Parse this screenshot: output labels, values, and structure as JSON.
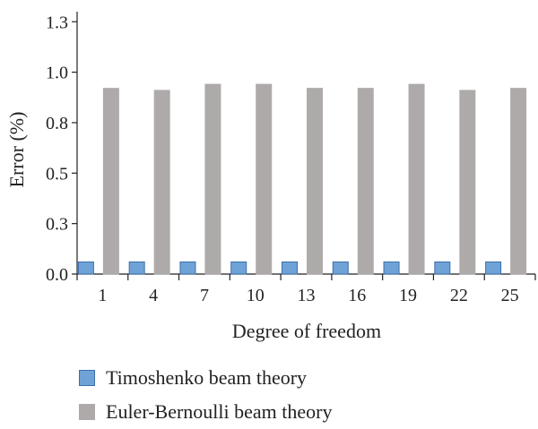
{
  "chart_data": {
    "type": "bar",
    "categories": [
      "1",
      "4",
      "7",
      "10",
      "13",
      "16",
      "19",
      "22",
      "25"
    ],
    "series": [
      {
        "name": "Timoshenko beam theory",
        "color": "#6fa3d8",
        "border": "#3c6fa8",
        "values": [
          0.06,
          0.06,
          0.06,
          0.06,
          0.06,
          0.06,
          0.06,
          0.06,
          0.06
        ]
      },
      {
        "name": "Euler-Bernoulli beam theory",
        "color": "#aeaaaa",
        "border": "#aeaaaa",
        "values": [
          0.92,
          0.91,
          0.94,
          0.94,
          0.92,
          0.92,
          0.94,
          0.91,
          0.92
        ]
      }
    ],
    "xlabel": "Degree of freedom",
    "ylabel": "Error (%)",
    "ylim": [
      0,
      1.3
    ],
    "yticks": [
      0.0,
      0.25,
      0.5,
      0.75,
      1.0,
      1.25
    ],
    "ytick_labels": [
      "0.0",
      "0.3",
      "0.5",
      "0.8",
      "1.0",
      "1.3"
    ],
    "grid": false,
    "legend_position": "bottom-left"
  }
}
